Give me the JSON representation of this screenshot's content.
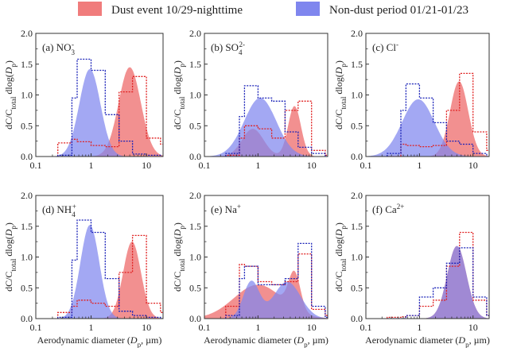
{
  "colors": {
    "dust": "#f07c7c",
    "nondust": "#7f86ee",
    "overlap": "#7a2fa8",
    "dust_line": "#e02020",
    "nondust_line": "#1a22b8"
  },
  "legend": {
    "dust_label": "Dust event 10/29-nighttime",
    "nondust_label": "Non-dust period 01/21-01/23"
  },
  "chart_data": [
    {
      "type": "area",
      "species": "NO3-",
      "label_base": "(a) NO",
      "label_sub": "3",
      "label_sup": "-",
      "xlog": true,
      "xlim": [
        0.1,
        20
      ],
      "ylim": [
        0,
        2.0
      ],
      "yticks": [
        "0.0",
        "0.5",
        "1.0",
        "1.5",
        "2.0"
      ],
      "xtick_values": [
        0.1,
        1,
        10
      ],
      "xtick_labels": [
        "0.1",
        "1",
        "10"
      ],
      "show_xlabel": false,
      "series": [
        {
          "name": "Dust event 10/29-nighttime",
          "fit": [
            {
              "a": 1.45,
              "mu": 5.0,
              "sigma": 0.2
            }
          ],
          "step_x": [
            0.25,
            0.45,
            0.56,
            1.0,
            1.8,
            3.2,
            5.6,
            10,
            18
          ],
          "step_y": [
            0.22,
            0.28,
            0.24,
            0.18,
            0.16,
            1.05,
            1.3,
            0.3,
            0.2
          ]
        },
        {
          "name": "Non-dust period 01/21-01/23",
          "fit": [
            {
              "a": 1.42,
              "mu": 0.95,
              "sigma": 0.19
            }
          ],
          "step_x": [
            0.25,
            0.45,
            0.56,
            1.0,
            1.8,
            3.2,
            5.6,
            10,
            18
          ],
          "step_y": [
            0.02,
            0.95,
            1.58,
            1.4,
            0.68,
            0.25,
            0.04,
            0.02,
            0.0
          ]
        }
      ]
    },
    {
      "type": "area",
      "species": "SO42-",
      "label_base": "(b) SO",
      "label_sub": "4",
      "label_sup": "2-",
      "xlog": true,
      "xlim": [
        0.1,
        20
      ],
      "ylim": [
        0,
        2.0
      ],
      "yticks": [
        "0.0",
        "0.5",
        "1.0",
        "1.5",
        "2.0"
      ],
      "xtick_values": [
        0.1,
        1,
        10
      ],
      "xtick_labels": [
        "0.1",
        "1",
        "10"
      ],
      "show_xlabel": false,
      "series": [
        {
          "name": "Dust event 10/29-nighttime",
          "fit": [
            {
              "a": 0.45,
              "mu": 0.8,
              "sigma": 0.2
            },
            {
              "a": 0.82,
              "mu": 4.8,
              "sigma": 0.12
            }
          ],
          "step_x": [
            0.25,
            0.45,
            0.56,
            1.0,
            1.8,
            3.2,
            5.6,
            10,
            18
          ],
          "step_y": [
            0.02,
            0.3,
            0.5,
            0.45,
            0.3,
            0.75,
            0.9,
            0.1,
            0.02
          ]
        },
        {
          "name": "Non-dust period 01/21-01/23",
          "fit": [
            {
              "a": 0.95,
              "mu": 1.1,
              "sigma": 0.3
            }
          ],
          "step_x": [
            0.25,
            0.45,
            0.56,
            1.0,
            1.8,
            3.2,
            5.6,
            10,
            18
          ],
          "step_y": [
            0.05,
            0.65,
            1.15,
            0.95,
            0.9,
            0.4,
            0.15,
            0.05,
            0.0
          ]
        }
      ]
    },
    {
      "type": "area",
      "species": "Cl-",
      "label_base": "(c) Cl",
      "label_sub": "",
      "label_sup": "-",
      "xlog": true,
      "xlim": [
        0.1,
        20
      ],
      "ylim": [
        0,
        2.0
      ],
      "yticks": [
        "0.0",
        "0.5",
        "1.0",
        "1.5",
        "2.0"
      ],
      "xtick_values": [
        0.1,
        1,
        10
      ],
      "xtick_labels": [
        "0.1",
        "1",
        "10"
      ],
      "show_xlabel": false,
      "series": [
        {
          "name": "Dust event 10/29-nighttime",
          "fit": [
            {
              "a": 1.22,
              "mu": 5.5,
              "sigma": 0.17
            }
          ],
          "step_x": [
            0.25,
            0.45,
            0.56,
            1.0,
            1.8,
            3.2,
            5.6,
            10,
            18
          ],
          "step_y": [
            0.0,
            0.2,
            0.18,
            0.16,
            0.18,
            0.75,
            1.35,
            0.4,
            0.1
          ]
        },
        {
          "name": "Non-dust period 01/21-01/23",
          "fit": [
            {
              "a": 0.93,
              "mu": 0.95,
              "sigma": 0.3
            }
          ],
          "step_x": [
            0.25,
            0.45,
            0.56,
            1.0,
            1.8,
            3.2,
            5.6,
            10,
            18
          ],
          "step_y": [
            0.05,
            0.75,
            1.18,
            0.95,
            0.55,
            0.25,
            0.2,
            0.05,
            0.0
          ]
        }
      ]
    },
    {
      "type": "area",
      "species": "NH4+",
      "label_base": "(d) NH",
      "label_sub": "4",
      "label_sup": "+",
      "xlog": true,
      "xlim": [
        0.1,
        20
      ],
      "ylim": [
        0,
        2.0
      ],
      "yticks": [
        "0.0",
        "0.5",
        "1.0",
        "1.5",
        "2.0"
      ],
      "xtick_values": [
        0.1,
        1,
        10
      ],
      "xtick_labels": [
        "0.1",
        "1",
        "10"
      ],
      "show_xlabel": true,
      "series": [
        {
          "name": "Dust event 10/29-nighttime",
          "fit": [
            {
              "a": 1.25,
              "mu": 5.5,
              "sigma": 0.16
            }
          ],
          "step_x": [
            0.25,
            0.45,
            0.56,
            1.0,
            1.8,
            3.2,
            5.6,
            10,
            18
          ],
          "step_y": [
            0.1,
            0.2,
            0.3,
            0.25,
            0.2,
            0.75,
            1.35,
            0.25,
            0.1
          ]
        },
        {
          "name": "Non-dust period 01/21-01/23",
          "fit": [
            {
              "a": 1.52,
              "mu": 0.95,
              "sigma": 0.17
            }
          ],
          "step_x": [
            0.25,
            0.45,
            0.56,
            1.0,
            1.8,
            3.2,
            5.6,
            10,
            18
          ],
          "step_y": [
            0.02,
            0.95,
            1.6,
            1.4,
            0.65,
            0.12,
            0.05,
            0.02,
            0.0
          ]
        }
      ]
    },
    {
      "type": "area",
      "species": "Na+",
      "label_base": "(e) Na",
      "label_sub": "",
      "label_sup": "+",
      "xlog": true,
      "xlim": [
        0.1,
        20
      ],
      "ylim": [
        0,
        2.0
      ],
      "yticks": [
        "0.0",
        "0.5",
        "1.0",
        "1.5",
        "2.0"
      ],
      "xtick_values": [
        0.1,
        1,
        10
      ],
      "xtick_labels": [
        "0.1",
        "1",
        "10"
      ],
      "show_xlabel": true,
      "series": [
        {
          "name": "Dust event 10/29-nighttime",
          "fit": [
            {
              "a": 0.55,
              "mu": 1.0,
              "sigma": 0.45
            },
            {
              "a": 0.6,
              "mu": 4.8,
              "sigma": 0.11
            }
          ],
          "step_x": [
            0.25,
            0.45,
            0.56,
            1.0,
            1.8,
            3.2,
            5.6,
            10,
            18
          ],
          "step_y": [
            0.2,
            0.88,
            0.85,
            0.6,
            0.55,
            0.6,
            1.05,
            0.15,
            0.05
          ]
        },
        {
          "name": "Non-dust period 01/21-01/23",
          "fit": [
            {
              "a": 0.6,
              "mu": 0.75,
              "sigma": 0.15
            },
            {
              "a": 0.6,
              "mu": 3.5,
              "sigma": 0.25
            }
          ],
          "step_x": [
            0.25,
            0.45,
            0.56,
            1.0,
            1.8,
            3.2,
            5.6,
            10,
            18
          ],
          "step_y": [
            0.05,
            0.65,
            0.85,
            0.55,
            0.55,
            0.65,
            1.22,
            0.2,
            0.02
          ]
        }
      ]
    },
    {
      "type": "area",
      "species": "Ca2+",
      "label_base": "(f) Ca",
      "label_sub": "",
      "label_sup": "2+",
      "xlog": true,
      "xlim": [
        0.1,
        20
      ],
      "ylim": [
        0,
        2.0
      ],
      "yticks": [
        "0.0",
        "0.5",
        "1.0",
        "1.5",
        "2.0"
      ],
      "xtick_values": [
        0.1,
        1,
        10
      ],
      "xtick_labels": [
        "0.1",
        "1",
        "10"
      ],
      "show_xlabel": true,
      "series": [
        {
          "name": "Dust event 10/29-nighttime",
          "fit": [
            {
              "a": 1.18,
              "mu": 5.0,
              "sigma": 0.18
            }
          ],
          "step_x": [
            0.25,
            0.45,
            0.56,
            1.0,
            1.8,
            3.2,
            5.6,
            10,
            18
          ],
          "step_y": [
            0.02,
            0.03,
            0.05,
            0.2,
            0.3,
            0.85,
            1.4,
            0.3,
            0.05
          ]
        },
        {
          "name": "Non-dust period 01/21-01/23",
          "fit": [
            {
              "a": 1.18,
              "mu": 5.0,
              "sigma": 0.18
            }
          ],
          "step_x": [
            0.25,
            0.45,
            0.56,
            1.0,
            1.8,
            3.2,
            5.6,
            10,
            18
          ],
          "step_y": [
            0.0,
            0.0,
            0.05,
            0.35,
            0.5,
            0.9,
            1.15,
            0.35,
            0.05
          ]
        }
      ]
    }
  ],
  "axis": {
    "ylabel": "dC/C_total dlog(D_p)",
    "ylabel_main": "dC/C",
    "ylabel_sub": "total",
    "ylabel_mid": " dlog(",
    "ylabel_dp": "D",
    "ylabel_p": "p",
    "ylabel_end": ")",
    "xlabel": "Aerodynamic diameter (D_p, µm)",
    "xlabel_main": "Aerodynamic diameter (",
    "xlabel_dp": "D",
    "xlabel_p": "p",
    "xlabel_end": ", µm)"
  }
}
